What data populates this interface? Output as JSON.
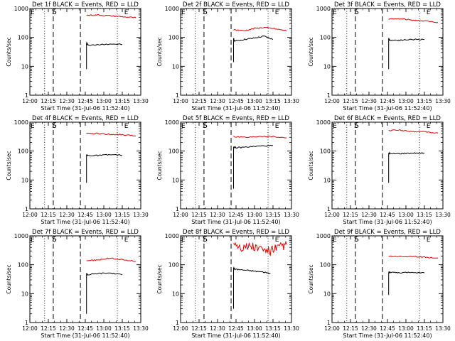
{
  "colors": {
    "events": "#000000",
    "lld": "#e00000",
    "axes": "#000000"
  },
  "chart_data": [
    {
      "type": "line",
      "title": "Det 1f BLACK = Events, RED = LLD",
      "xlabel": "Start Time (31-Jul-06 11:52:40)",
      "ylabel": "Counts/sec",
      "yscale": "log",
      "ylim": [
        1,
        1000
      ],
      "xlim": [
        "12:00",
        "13:30"
      ],
      "x_ticks": [
        "12:00",
        "12:15",
        "12:30",
        "12:45",
        "13:00",
        "13:15",
        "13:30"
      ],
      "y_ticks": [
        "1",
        "10",
        "100",
        "1000"
      ],
      "markers": {
        "S": "12:19",
        "E": "13:16"
      },
      "vlines": {
        "dotted": [
          "12:12",
          "13:11"
        ],
        "dashed": [
          "12:19",
          "12:41"
        ]
      },
      "series": [
        {
          "name": "Events",
          "color": "#000000",
          "start_spike": 8,
          "x": [
            "12:46",
            "12:47",
            "12:55",
            "13:05",
            "13:15"
          ],
          "y": [
            65,
            55,
            55,
            60,
            57
          ]
        },
        {
          "name": "LLD",
          "color": "#e00000",
          "x": [
            "12:46",
            "12:55",
            "13:05",
            "13:15",
            "13:26"
          ],
          "y": [
            580,
            600,
            560,
            520,
            480
          ]
        }
      ]
    },
    {
      "type": "line",
      "title": "Det 2f BLACK = Events, RED = LLD",
      "xlabel": "Start Time (31-Jul-06 11:52:40)",
      "ylabel": "Counts/sec",
      "yscale": "log",
      "ylim": [
        1,
        1000
      ],
      "xlim": [
        "12:00",
        "13:30"
      ],
      "x_ticks": [
        "12:00",
        "12:15",
        "12:30",
        "12:45",
        "13:00",
        "13:15",
        "13:30"
      ],
      "y_ticks": [
        "1",
        "10",
        "100",
        "1000"
      ],
      "markers": {
        "S": "12:19",
        "E": "13:16"
      },
      "vlines": {
        "dotted": [
          "12:12",
          "13:11"
        ],
        "dashed": [
          "12:19",
          "12:41"
        ]
      },
      "series": [
        {
          "name": "Events",
          "color": "#000000",
          "start_spike": 14,
          "x": [
            "12:43",
            "12:44",
            "12:52",
            "13:00",
            "13:08",
            "13:15"
          ],
          "y": [
            90,
            75,
            85,
            95,
            110,
            85
          ]
        },
        {
          "name": "LLD",
          "color": "#e00000",
          "x": [
            "12:43",
            "12:52",
            "13:00",
            "13:08",
            "13:16",
            "13:26"
          ],
          "y": [
            185,
            170,
            205,
            220,
            200,
            170
          ]
        }
      ]
    },
    {
      "type": "line",
      "title": "Det 3f BLACK = Events, RED = LLD",
      "xlabel": "Start Time (31-Jul-06 11:52:40)",
      "ylabel": "Counts/sec",
      "yscale": "log",
      "ylim": [
        1,
        1000
      ],
      "xlim": [
        "12:00",
        "13:30"
      ],
      "x_ticks": [
        "12:00",
        "12:15",
        "12:30",
        "12:45",
        "13:00",
        "13:15",
        "13:30"
      ],
      "y_ticks": [
        "1",
        "10",
        "100",
        "1000"
      ],
      "markers": {
        "S": "12:19",
        "E": "13:16"
      },
      "vlines": {
        "dotted": [
          "12:12",
          "13:11"
        ],
        "dashed": [
          "12:19",
          "12:41"
        ]
      },
      "series": [
        {
          "name": "Events",
          "color": "#000000",
          "start_spike": 8,
          "x": [
            "12:46",
            "12:47",
            "12:55",
            "13:05",
            "13:15"
          ],
          "y": [
            90,
            80,
            80,
            85,
            85
          ]
        },
        {
          "name": "LLD",
          "color": "#e00000",
          "x": [
            "12:46",
            "12:55",
            "13:05",
            "13:15",
            "13:26"
          ],
          "y": [
            430,
            440,
            400,
            370,
            330
          ]
        }
      ]
    },
    {
      "type": "line",
      "title": "Det 4f BLACK = Events, RED = LLD",
      "xlabel": "Start Time (31-Jul-06 11:52:40)",
      "ylabel": "Counts/sec",
      "yscale": "log",
      "ylim": [
        1,
        1000
      ],
      "xlim": [
        "12:00",
        "13:30"
      ],
      "x_ticks": [
        "12:00",
        "12:15",
        "12:30",
        "12:45",
        "13:00",
        "13:15",
        "13:30"
      ],
      "y_ticks": [
        "1",
        "10",
        "100",
        "1000"
      ],
      "markers": {
        "S": "12:19",
        "E": "13:16"
      },
      "vlines": {
        "dotted": [
          "12:12",
          "13:11"
        ],
        "dashed": [
          "12:19",
          "12:41"
        ]
      },
      "series": [
        {
          "name": "Events",
          "color": "#000000",
          "start_spike": 8,
          "x": [
            "12:46",
            "12:47",
            "12:55",
            "13:05",
            "13:15"
          ],
          "y": [
            75,
            70,
            70,
            75,
            72
          ]
        },
        {
          "name": "LLD",
          "color": "#e00000",
          "x": [
            "12:46",
            "12:55",
            "13:05",
            "13:15",
            "13:26"
          ],
          "y": [
            400,
            410,
            380,
            370,
            330
          ]
        }
      ]
    },
    {
      "type": "line",
      "title": "Det 5f BLACK = Events, RED = LLD",
      "xlabel": "Start Time (31-Jul-06 11:52:40)",
      "ylabel": "Counts/sec",
      "yscale": "log",
      "ylim": [
        1,
        1000
      ],
      "xlim": [
        "12:00",
        "13:30"
      ],
      "x_ticks": [
        "12:00",
        "12:15",
        "12:30",
        "12:45",
        "13:00",
        "13:15",
        "13:30"
      ],
      "y_ticks": [
        "1",
        "10",
        "100",
        "1000"
      ],
      "markers": {
        "S": "12:19",
        "E": "13:16"
      },
      "vlines": {
        "dotted": [
          "12:12",
          "13:11"
        ],
        "dashed": [
          "12:19",
          "12:41"
        ]
      },
      "series": [
        {
          "name": "Events",
          "color": "#000000",
          "start_spike": 5,
          "x": [
            "12:43",
            "12:45",
            "12:55",
            "13:05",
            "13:15"
          ],
          "y": [
            140,
            130,
            140,
            150,
            155
          ]
        },
        {
          "name": "LLD",
          "color": "#e00000",
          "x": [
            "12:43",
            "12:55",
            "13:05",
            "13:15",
            "13:26"
          ],
          "y": [
            320,
            300,
            330,
            320,
            290
          ]
        }
      ]
    },
    {
      "type": "line",
      "title": "Det 6f BLACK = Events, RED = LLD",
      "xlabel": "Start Time (31-Jul-06 11:52:40)",
      "ylabel": "Counts/sec",
      "yscale": "log",
      "ylim": [
        1,
        1000
      ],
      "xlim": [
        "12:00",
        "13:30"
      ],
      "x_ticks": [
        "12:00",
        "12:15",
        "12:30",
        "12:45",
        "13:00",
        "13:15",
        "13:30"
      ],
      "y_ticks": [
        "1",
        "10",
        "100",
        "1000"
      ],
      "markers": {
        "S": "12:19",
        "E": "13:16"
      },
      "vlines": {
        "dotted": [
          "12:12",
          "13:11"
        ],
        "dashed": [
          "12:19",
          "12:41"
        ]
      },
      "series": [
        {
          "name": "Events",
          "color": "#000000",
          "start_spike": 8,
          "x": [
            "12:46",
            "12:47",
            "12:55",
            "13:05",
            "13:15"
          ],
          "y": [
            85,
            80,
            82,
            85,
            85
          ]
        },
        {
          "name": "LLD",
          "color": "#e00000",
          "x": [
            "12:46",
            "12:55",
            "13:05",
            "13:15",
            "13:26"
          ],
          "y": [
            520,
            530,
            480,
            460,
            420
          ]
        }
      ]
    },
    {
      "type": "line",
      "title": "Det 7f BLACK = Events, RED = LLD",
      "xlabel": "Start Time (31-Jul-06 11:52:40)",
      "ylabel": "Counts/sec",
      "yscale": "log",
      "ylim": [
        1,
        1000
      ],
      "xlim": [
        "12:00",
        "13:30"
      ],
      "x_ticks": [
        "12:00",
        "12:15",
        "12:30",
        "12:45",
        "13:00",
        "13:15",
        "13:30"
      ],
      "y_ticks": [
        "1",
        "10",
        "100",
        "1000"
      ],
      "markers": {
        "S": "12:19",
        "E": "13:16"
      },
      "vlines": {
        "dotted": [
          "12:12",
          "13:11"
        ],
        "dashed": [
          "12:19",
          "12:41"
        ]
      },
      "series": [
        {
          "name": "Events",
          "color": "#000000",
          "start_spike": 2,
          "x": [
            "12:46",
            "12:47",
            "12:55",
            "13:05",
            "13:15"
          ],
          "y": [
            50,
            45,
            50,
            52,
            45
          ]
        },
        {
          "name": "LLD",
          "color": "#e00000",
          "x": [
            "12:46",
            "12:55",
            "13:05",
            "13:15",
            "13:26"
          ],
          "y": [
            140,
            145,
            170,
            150,
            130
          ]
        }
      ]
    },
    {
      "type": "line",
      "title": "Det 8f BLACK = Events, RED = LLD",
      "xlabel": "Start Time (31-Jul-06 11:52:40)",
      "ylabel": "Counts/sec",
      "yscale": "log",
      "ylim": [
        1,
        1000
      ],
      "xlim": [
        "12:00",
        "13:30"
      ],
      "x_ticks": [
        "12:00",
        "12:15",
        "12:30",
        "12:45",
        "13:00",
        "13:15",
        "13:30"
      ],
      "y_ticks": [
        "1",
        "10",
        "100",
        "1000"
      ],
      "markers": {
        "S": "12:19",
        "E": "13:16"
      },
      "vlines": {
        "dotted": [
          "12:12",
          "13:11"
        ],
        "dashed": [
          "12:19",
          "12:41"
        ]
      },
      "series": [
        {
          "name": "Events",
          "color": "#000000",
          "start_spike": 3,
          "x": [
            "12:43",
            "12:44",
            "12:52",
            "13:00",
            "13:08",
            "13:13"
          ],
          "y": [
            80,
            70,
            65,
            60,
            55,
            50
          ]
        },
        {
          "name": "LLD",
          "color": "#e00000",
          "noisy": true,
          "x": [
            "12:43",
            "12:50",
            "12:57",
            "13:05",
            "13:12",
            "13:20",
            "13:26"
          ],
          "y": [
            600,
            400,
            450,
            350,
            300,
            400,
            500
          ]
        }
      ]
    },
    {
      "type": "line",
      "title": "Det 9f BLACK = Events, RED = LLD",
      "xlabel": "Start Time (31-Jul-06 11:52:40)",
      "ylabel": "Counts/sec",
      "yscale": "log",
      "ylim": [
        1,
        1000
      ],
      "xlim": [
        "12:00",
        "13:30"
      ],
      "x_ticks": [
        "12:00",
        "12:15",
        "12:30",
        "12:45",
        "13:00",
        "13:15",
        "13:30"
      ],
      "y_ticks": [
        "1",
        "10",
        "100",
        "1000"
      ],
      "markers": {
        "S": "12:19",
        "E": "13:16"
      },
      "vlines": {
        "dotted": [
          "12:12",
          "13:11"
        ],
        "dashed": [
          "12:19",
          "12:41"
        ]
      },
      "series": [
        {
          "name": "Events",
          "color": "#000000",
          "start_spike": 9,
          "x": [
            "12:46",
            "12:47",
            "12:55",
            "13:05",
            "13:15"
          ],
          "y": [
            55,
            55,
            52,
            55,
            52
          ]
        },
        {
          "name": "LLD",
          "color": "#e00000",
          "x": [
            "12:46",
            "12:55",
            "13:05",
            "13:15",
            "13:26"
          ],
          "y": [
            200,
            195,
            190,
            185,
            170
          ]
        }
      ]
    }
  ]
}
